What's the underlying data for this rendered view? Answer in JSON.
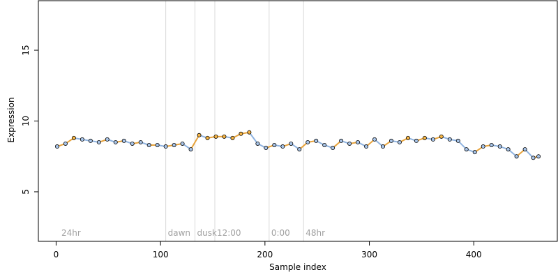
{
  "chart_data": {
    "type": "scatter",
    "xlabel": "Sample index",
    "ylabel": "Expression",
    "xlim": [
      -17,
      480
    ],
    "ylim": [
      1.5,
      18.5
    ],
    "x_ticks": [
      0,
      100,
      200,
      300,
      400
    ],
    "y_ticks": [
      5,
      10,
      15
    ],
    "grid": false,
    "colors": {
      "point_fill_blue": "#a8c4e8",
      "point_fill_orange": "#f6b544",
      "segment_blue": "#8fb3e0",
      "segment_orange": "#e8a33a",
      "point_stroke": "#000000",
      "vertical_lines": "#d9d9d9",
      "annotation_text": "#a0a0a0"
    },
    "annotations": [
      {
        "x": 3,
        "label": "24hr",
        "line": false
      },
      {
        "x": 105,
        "label": "dawn",
        "line": true
      },
      {
        "x": 133,
        "label": "dusk",
        "line": true
      },
      {
        "x": 152,
        "label": "12:00",
        "line": true
      },
      {
        "x": 204,
        "label": "0:00",
        "line": true
      },
      {
        "x": 237,
        "label": "48hr",
        "line": true
      }
    ],
    "series": [
      {
        "x": [
          1,
          9,
          17,
          25,
          33,
          41,
          49,
          57,
          65,
          73,
          81,
          89,
          97,
          105,
          113,
          121,
          129,
          137,
          145,
          153,
          161,
          169,
          177,
          185,
          193,
          201,
          209,
          217,
          225,
          233,
          241,
          249,
          257,
          265,
          273,
          281,
          289,
          297,
          305,
          313,
          321,
          329,
          337,
          345,
          353,
          361,
          369,
          377,
          385,
          393,
          401,
          409,
          417,
          425,
          433,
          441,
          449,
          457,
          462
        ],
        "y": [
          8.2,
          8.4,
          8.8,
          8.7,
          8.6,
          8.5,
          8.7,
          8.5,
          8.6,
          8.4,
          8.5,
          8.3,
          8.3,
          8.2,
          8.3,
          8.4,
          8.0,
          9.0,
          8.8,
          8.9,
          8.9,
          8.8,
          9.1,
          9.2,
          8.4,
          8.1,
          8.3,
          8.2,
          8.4,
          8.0,
          8.5,
          8.6,
          8.3,
          8.1,
          8.6,
          8.4,
          8.5,
          8.2,
          8.7,
          8.2,
          8.6,
          8.5,
          8.8,
          8.6,
          8.8,
          8.7,
          8.9,
          8.7,
          8.6,
          8.0,
          7.8,
          8.2,
          8.3,
          8.2,
          8.0,
          7.5,
          8.0,
          7.4,
          7.5
        ]
      }
    ]
  }
}
